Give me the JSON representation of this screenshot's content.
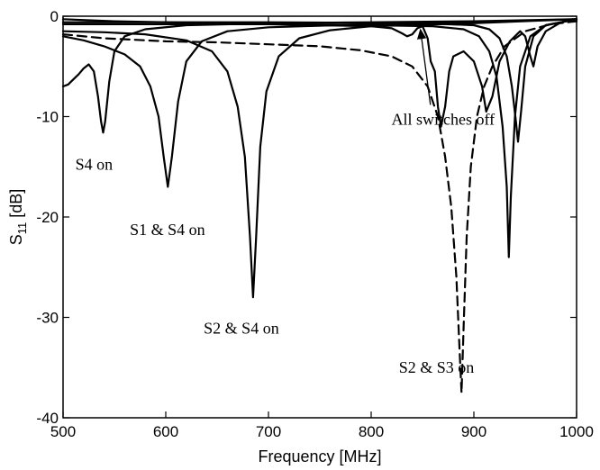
{
  "chart_data": {
    "type": "line",
    "title": "",
    "xlabel": "Frequency [MHz]",
    "ylabel_main": "S",
    "ylabel_sub": "11",
    "ylabel_unit": " [dB]",
    "xlim": [
      500,
      1000
    ],
    "ylim": [
      -40,
      0
    ],
    "xticks": [
      500,
      600,
      700,
      800,
      900,
      1000
    ],
    "yticks": [
      0,
      -10,
      -20,
      -30,
      -40
    ],
    "grid": false,
    "series": [
      {
        "name": "All switches off",
        "style": "solid",
        "points": [
          [
            500,
            -0.3
          ],
          [
            550,
            -0.5
          ],
          [
            600,
            -0.6
          ],
          [
            650,
            -0.7
          ],
          [
            700,
            -0.8
          ],
          [
            750,
            -0.9
          ],
          [
            800,
            -1.0
          ],
          [
            820,
            -1.2
          ],
          [
            830,
            -1.7
          ],
          [
            835,
            -2.0
          ],
          [
            840,
            -1.8
          ],
          [
            845,
            -1.2
          ],
          [
            850,
            -1.0
          ],
          [
            855,
            -2.2
          ],
          [
            858,
            -4.5
          ],
          [
            862,
            -5.5
          ],
          [
            865,
            -9.0
          ],
          [
            868,
            -11.0
          ],
          [
            872,
            -9.0
          ],
          [
            876,
            -5.5
          ],
          [
            880,
            -4.0
          ],
          [
            890,
            -3.5
          ],
          [
            900,
            -4.5
          ],
          [
            908,
            -7.0
          ],
          [
            912,
            -9.5
          ],
          [
            918,
            -8.0
          ],
          [
            925,
            -4.5
          ],
          [
            935,
            -2.5
          ],
          [
            945,
            -1.5
          ],
          [
            950,
            -2.0
          ],
          [
            955,
            -4.0
          ],
          [
            958,
            -5.0
          ],
          [
            962,
            -3.0
          ],
          [
            970,
            -1.5
          ],
          [
            985,
            -0.6
          ],
          [
            1000,
            -0.3
          ]
        ]
      },
      {
        "name": "S4 on",
        "style": "solid",
        "points": [
          [
            500,
            -7.0
          ],
          [
            505,
            -6.8
          ],
          [
            510,
            -6.3
          ],
          [
            515,
            -5.8
          ],
          [
            520,
            -5.2
          ],
          [
            525,
            -4.8
          ],
          [
            530,
            -5.5
          ],
          [
            534,
            -8.0
          ],
          [
            537,
            -10.5
          ],
          [
            539,
            -11.6
          ],
          [
            541,
            -10.5
          ],
          [
            545,
            -6.5
          ],
          [
            550,
            -3.5
          ],
          [
            560,
            -2.0
          ],
          [
            580,
            -1.3
          ],
          [
            620,
            -0.9
          ],
          [
            700,
            -0.7
          ],
          [
            800,
            -0.6
          ],
          [
            900,
            -0.5
          ],
          [
            1000,
            -0.3
          ]
        ]
      },
      {
        "name": "S1 & S4 on",
        "style": "solid",
        "points": [
          [
            500,
            -2.0
          ],
          [
            520,
            -2.4
          ],
          [
            540,
            -3.0
          ],
          [
            560,
            -3.8
          ],
          [
            575,
            -5.0
          ],
          [
            585,
            -7.0
          ],
          [
            593,
            -10.0
          ],
          [
            598,
            -14.0
          ],
          [
            602,
            -17.0
          ],
          [
            606,
            -14.0
          ],
          [
            612,
            -8.5
          ],
          [
            620,
            -4.5
          ],
          [
            635,
            -2.5
          ],
          [
            660,
            -1.5
          ],
          [
            700,
            -1.1
          ],
          [
            800,
            -0.8
          ],
          [
            900,
            -0.6
          ],
          [
            1000,
            -0.3
          ]
        ]
      },
      {
        "name": "S2 & S4 on",
        "style": "solid",
        "points": [
          [
            500,
            -1.5
          ],
          [
            540,
            -1.6
          ],
          [
            580,
            -1.8
          ],
          [
            620,
            -2.4
          ],
          [
            645,
            -3.5
          ],
          [
            660,
            -5.5
          ],
          [
            670,
            -9.0
          ],
          [
            677,
            -14.0
          ],
          [
            682,
            -22.0
          ],
          [
            685,
            -28.0
          ],
          [
            688,
            -22.0
          ],
          [
            692,
            -13.0
          ],
          [
            698,
            -7.5
          ],
          [
            710,
            -4.0
          ],
          [
            730,
            -2.2
          ],
          [
            760,
            -1.4
          ],
          [
            800,
            -1.0
          ],
          [
            900,
            -0.7
          ],
          [
            1000,
            -0.3
          ]
        ]
      },
      {
        "name": "S2 & S3 on",
        "style": "dashed",
        "points": [
          [
            500,
            -1.8
          ],
          [
            540,
            -2.2
          ],
          [
            600,
            -2.5
          ],
          [
            650,
            -2.6
          ],
          [
            700,
            -2.8
          ],
          [
            750,
            -3.0
          ],
          [
            790,
            -3.4
          ],
          [
            820,
            -4.0
          ],
          [
            840,
            -5.0
          ],
          [
            855,
            -7.0
          ],
          [
            865,
            -10.0
          ],
          [
            872,
            -14.0
          ],
          [
            878,
            -19.0
          ],
          [
            883,
            -26.0
          ],
          [
            886,
            -33.0
          ],
          [
            888,
            -37.5
          ],
          [
            890,
            -31.0
          ],
          [
            893,
            -22.0
          ],
          [
            897,
            -15.0
          ],
          [
            903,
            -10.0
          ],
          [
            910,
            -7.0
          ],
          [
            918,
            -5.0
          ],
          [
            930,
            -3.0
          ],
          [
            950,
            -1.5
          ],
          [
            975,
            -0.8
          ],
          [
            1000,
            -0.5
          ]
        ]
      },
      {
        "name": "",
        "style": "solid",
        "points": [
          [
            500,
            -0.8
          ],
          [
            700,
            -0.8
          ],
          [
            800,
            -0.9
          ],
          [
            860,
            -1.0
          ],
          [
            890,
            -1.3
          ],
          [
            905,
            -2.0
          ],
          [
            915,
            -3.5
          ],
          [
            922,
            -6.0
          ],
          [
            928,
            -11.0
          ],
          [
            932,
            -17.0
          ],
          [
            934,
            -24.0
          ],
          [
            936,
            -18.0
          ],
          [
            940,
            -10.0
          ],
          [
            945,
            -5.0
          ],
          [
            955,
            -2.0
          ],
          [
            970,
            -0.9
          ],
          [
            1000,
            -0.3
          ]
        ]
      },
      {
        "name": "",
        "style": "solid",
        "points": [
          [
            500,
            -0.6
          ],
          [
            700,
            -0.6
          ],
          [
            850,
            -0.7
          ],
          [
            900,
            -0.9
          ],
          [
            915,
            -1.3
          ],
          [
            925,
            -2.2
          ],
          [
            932,
            -4.0
          ],
          [
            937,
            -7.0
          ],
          [
            941,
            -10.5
          ],
          [
            943,
            -12.5
          ],
          [
            946,
            -9.5
          ],
          [
            950,
            -5.0
          ],
          [
            958,
            -2.0
          ],
          [
            970,
            -0.9
          ],
          [
            1000,
            -0.3
          ]
        ]
      }
    ],
    "annotations": [
      {
        "text": "All switches off",
        "x": 870,
        "y": -10.8,
        "arrow_to": [
          848,
          -0.8
        ]
      },
      {
        "text": "S4  on",
        "x": 512,
        "y": -15.3
      },
      {
        "text": "S1 & S4  on",
        "x": 565,
        "y": -21.8
      },
      {
        "text": "S2 & S4  on",
        "x": 637,
        "y": -31.6
      },
      {
        "text": "S2 & S3  on",
        "x": 827,
        "y": -35.5
      }
    ]
  }
}
